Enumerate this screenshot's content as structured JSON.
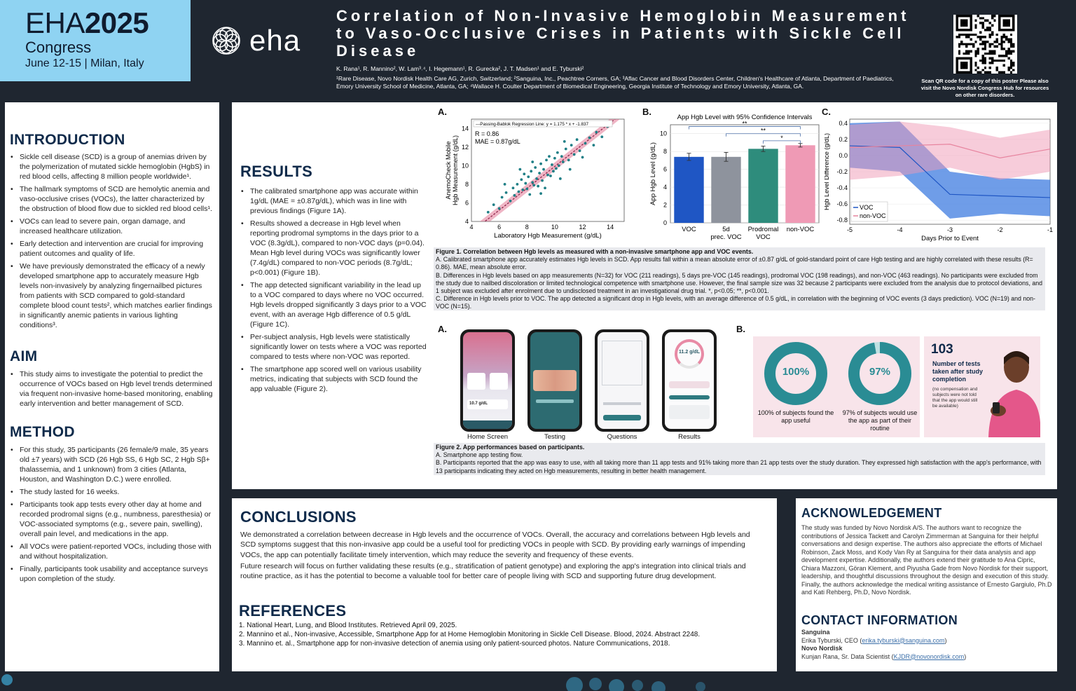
{
  "header": {
    "eha_year_light": "EHA",
    "eha_year_bold": "2025",
    "congress": "Congress",
    "dates": "June 12-15 | Milan, Italy",
    "logo_text": "eha",
    "title": "Correlation of Non-Invasive Hemoglobin Measurement to Vaso-Occlusive Crises in Patients with Sickle Cell Disease",
    "authors": "K. Rana¹, R. Mannino², W. Lam³˒⁴, I. Hegemann¹, R. Gurecka², J. T. Madsen¹ and E. Tyburski²",
    "affiliations": "¹Rare Disease, Novo Nordisk Health Care AG, Zurich, Switzerland; ²Sanguina, Inc., Peachtree Corners, GA; ³Aflac Cancer and Blood Disorders Center, Children's Healthcare of Atlanta, Department of Paediatrics, Emory University School of Medicine, Atlanta, GA; ⁴Wallace H. Coulter Department of Biomedical Engineering, Georgia Institute of Technology and Emory University, Atlanta, GA.",
    "qr_text": "Scan QR code for a copy of this poster Please also visit the Novo Nordisk Congress Hub for resources on other rare disorders."
  },
  "introduction": {
    "heading": "INTRODUCTION",
    "items": [
      "Sickle cell disease (SCD) is a group of anemias driven by the polymerization of mutated sickle hemoglobin (HgbS) in red blood cells, affecting 8 million people worldwide¹.",
      "The hallmark symptoms of SCD are hemolytic anemia and vaso-occlusive crises (VOCs), the latter characterized by the obstruction of blood flow due to sickled red blood cells¹.",
      "VOCs can lead to severe pain, organ damage, and increased healthcare utilization.",
      "Early detection and intervention are crucial for improving patient outcomes and quality of life.",
      "We have previously demonstrated the efficacy of a newly developed smartphone app to accurately measure Hgb levels non-invasively by analyzing fingernailbed pictures from patients with SCD compared to gold-standard complete blood count tests², which matches earlier findings in significantly anemic patients in various lighting conditions³."
    ]
  },
  "aim": {
    "heading": "AIM",
    "items": [
      "This study aims to investigate the potential to predict the occurrence of VOCs based on Hgb level trends determined via frequent non-invasive home-based monitoring, enabling early intervention and better management of SCD."
    ]
  },
  "method": {
    "heading": "METHOD",
    "items": [
      "For this study, 35 participants (26 female/9 male, 35 years old ±7 years) with SCD (26 Hgb SS, 6 Hgb SC, 2 Hgb Sβ+ thalassemia, and 1 unknown) from 3 cities (Atlanta, Houston, and Washington D.C.) were enrolled.",
      "The study lasted for 16 weeks.",
      "Participants took app tests every other day at home and recorded prodromal signs (e.g., numbness, paresthesia) or VOC-associated symptoms (e.g., severe pain, swelling), overall pain level, and medications in the app.",
      "All VOCs were patient-reported VOCs, including those with and without hospitalization.",
      "Finally, participants took usability and acceptance surveys upon completion of the study."
    ]
  },
  "results": {
    "heading": "RESULTS",
    "items": [
      "The calibrated smartphone app was accurate within 1g/dL (MAE = ±0.87g/dL), which was in line with previous findings (Figure 1A).",
      "Results showed a decrease in Hgb level when reporting prodromal symptoms in the days prior to a VOC (8.3g/dL), compared to non-VOC days (p=0.04). Mean Hgb level during VOCs was significantly lower (7.4g/dL) compared to non-VOC periods (8.7g/dL; p<0.001) (Figure 1B).",
      "The app detected significant variability in the lead up to a VOC compared to days where no VOC occurred. Hgb levels dropped significantly 3 days prior to a VOC event, with an average Hgb difference of 0.5 g/dL (Figure 1C).",
      "Per-subject analysis, Hgb levels were statistically significantly lower on tests where a VOC was reported compared to tests where non-VOC was reported.",
      "The smartphone app scored well on various usability metrics, indicating that subjects with SCD found the app valuable (Figure 2)."
    ]
  },
  "figure1": {
    "letter_a": "A.",
    "letter_b": "B.",
    "letter_c": "C.",
    "caption_title": "Figure 1. Correlation between Hgb levels as measured with a non-invasive smartphone app and VOC events.",
    "caption_a": "A. Calibrated smartphone app accurately estimates Hgb levels in SCD. App results fall within a mean absolute error of ±0.87 g/dL of gold-standard point of care Hgb testing and are highly correlated with these results (R= 0.86). MAE, mean absolute error.",
    "caption_b": "B. Differences in Hgb levels based on app measurements (N=32) for VOC (211 readings), 5 days pre-VOC (145 readings), prodromal VOC (198 readings), and non-VOC (463 readings). No participants were excluded from the study due to nailbed discoloration or limited technological competence with smartphone use. However, the final sample size was 32 because 2 participants were excluded from the analysis due to protocol deviations, and 1 subject was excluded after enrolment due to undisclosed treatment in an investigational drug trial. *, p<0.05; **, p<0.001.",
    "caption_c": "C. Difference in Hgb levels prior to VOC. The app detected a significant drop in Hgb levels, with an average difference of 0.5 g/dL, in correlation with the beginning of VOC events (3 days prediction). VOC (N=19) and non-VOC (N=15)."
  },
  "figure2": {
    "letter_a": "A.",
    "letter_b": "B.",
    "screens": [
      "Home Screen",
      "Testing",
      "Questions",
      "Results"
    ],
    "screen_texts": {
      "home": "10.7 g/dL",
      "results": "11.2 g/dL"
    },
    "donut1_value": "100%",
    "donut1_label": "100% of subjects found the app useful",
    "donut2_value": "97%",
    "donut2_label": "97% of subjects would use the app as part of their routine",
    "stat_number": "103",
    "stat_label": "Number of tests taken after study completion",
    "stat_note": "(no compensation and subjects were not told that the app would still be available)",
    "caption_title": "Figure 2. App performances based on participants.",
    "caption_a": "A. Smartphone app testing flow.",
    "caption_b": "B. Participants reported that the app was easy to use, with all taking more than 11 app tests and 91% taking more than 21 app tests over the study duration. They expressed high satisfaction with the app's performance, with 13 participants indicating they acted on Hgb measurements, resulting in better health management."
  },
  "conclusions": {
    "heading": "CONCLUSIONS",
    "p1": "We demonstrated a correlation between decrease in Hgb levels and the occurrence of VOCs. Overall, the accuracy and correlations between Hgb levels and SCD symptoms suggest that this non-invasive app could be a useful tool for predicting VOCs in people with SCD. By providing early warnings of impending VOCs, the app can potentially facilitate timely intervention, which may reduce the severity and frequency of these events.",
    "p2": "Future research will focus on further validating these results (e.g., stratification of patient genotype) and exploring the app's integration into clinical trials and routine practice, as it has the potential to become a valuable tool for better care of people living with SCD and supporting future drug development."
  },
  "references": {
    "heading": "REFERENCES",
    "items": [
      "1. National Heart, Lung, and Blood Institutes. Retrieved April 09, 2025.",
      "2. Mannino et al., Non-invasive, Accessible, Smartphone App for at Home Hemoglobin Monitoring in Sickle Cell Disease. Blood, 2024. Abstract 2248.",
      "3. Mannino et. al., Smartphone app for non-invasive detection of anemia using only patient-sourced photos. Nature Communications, 2018."
    ]
  },
  "acknowledgement": {
    "heading": "ACKNOWLEDGEMENT",
    "text": "The study was funded by Novo Nordisk A/S. The authors want to recognize the contributions of Jessica Tackett and Carolyn Zimmerman at Sanguina for their helpful conversations and design expertise. The authors also appreciate the efforts of Michael Robinson, Zack Moss, and Kody Van Ry at Sanguina for their data analysis and app development expertise. Additionally, the authors extend their gratitude to Ana Cipric, Chiara Mazzoni, Göran Klement, and Piyusha Gade from Novo Nordisk for their support, leadership, and thoughtful discussions throughout the design and execution of this study. Finally, the authors acknowledge the medical writing assistance of Ernesto Gargiulo, Ph.D and Kati Rehberg, Ph.D, Novo Nordisk."
  },
  "contact": {
    "heading": "CONTACT INFORMATION",
    "org1": "Sanguina",
    "person1": "Erika Tyburski, CEO (",
    "email1": "erika.tyburski@sanguina.com",
    "close1": ")",
    "org2": "Novo Nordisk",
    "person2": "Kunjan Rana, Sr. Data Scientist (",
    "email2": "KJDR@novonordisk.com",
    "close2": ")"
  },
  "colors": {
    "header_blue": "#8fd3f2",
    "background": "#1f2630",
    "voc": "#1f56c4",
    "prec_voc": "#8e939d",
    "prodromal": "#2e8c7c",
    "non_voc": "#ef9ab5",
    "teal": "#2a8c94"
  },
  "chart_data": [
    {
      "type": "scatter",
      "title": "",
      "xlabel": "Laboratory Hgb Measurement (g/dL)",
      "ylabel": "AnemoCheck Mobile Hgb Measurement (g/dL)",
      "xlim": [
        4,
        15
      ],
      "ylim": [
        4,
        15
      ],
      "xticks": [
        4,
        6,
        8,
        10,
        12,
        14
      ],
      "yticks": [
        4,
        6,
        8,
        10,
        12,
        14
      ],
      "legend": "---Passing-Bablok Regression Line: y = 1.175 * x + -1.837",
      "annotations": [
        "R = 0.86",
        "MAE = 0.87g/dL"
      ],
      "regression": {
        "slope": 1.175,
        "intercept": -1.837
      },
      "points": [
        [
          5.2,
          5.0
        ],
        [
          5.6,
          5.8
        ],
        [
          6.0,
          5.4
        ],
        [
          6.2,
          6.6
        ],
        [
          6.5,
          7.1
        ],
        [
          6.8,
          6.2
        ],
        [
          7.0,
          7.6
        ],
        [
          7.1,
          6.8
        ],
        [
          7.3,
          8.0
        ],
        [
          7.4,
          7.2
        ],
        [
          7.6,
          8.5
        ],
        [
          7.7,
          7.4
        ],
        [
          7.8,
          9.1
        ],
        [
          7.9,
          8.1
        ],
        [
          8.0,
          7.5
        ],
        [
          8.1,
          8.8
        ],
        [
          8.2,
          6.9
        ],
        [
          8.3,
          9.4
        ],
        [
          8.4,
          8.2
        ],
        [
          8.5,
          7.9
        ],
        [
          8.6,
          9.8
        ],
        [
          8.7,
          8.6
        ],
        [
          8.8,
          7.8
        ],
        [
          8.9,
          9.2
        ],
        [
          9.0,
          10.2
        ],
        [
          9.1,
          8.4
        ],
        [
          9.2,
          9.6
        ],
        [
          9.3,
          7.6
        ],
        [
          9.4,
          10.6
        ],
        [
          9.5,
          9.0
        ],
        [
          9.6,
          11.0
        ],
        [
          9.7,
          8.9
        ],
        [
          9.8,
          10.1
        ],
        [
          9.9,
          9.4
        ],
        [
          10.0,
          10.8
        ],
        [
          10.1,
          9.7
        ],
        [
          10.2,
          11.4
        ],
        [
          10.3,
          10.0
        ],
        [
          10.4,
          8.6
        ],
        [
          10.5,
          11.0
        ],
        [
          10.6,
          10.4
        ],
        [
          10.8,
          11.8
        ],
        [
          11.0,
          10.6
        ],
        [
          11.2,
          12.2
        ],
        [
          11.4,
          11.2
        ],
        [
          11.6,
          12.8
        ],
        [
          11.8,
          11.6
        ],
        [
          12.0,
          10.9
        ],
        [
          12.2,
          12.4
        ],
        [
          12.5,
          13.0
        ],
        [
          12.8,
          12.2
        ],
        [
          13.0,
          13.6
        ],
        [
          13.4,
          13.1
        ],
        [
          13.8,
          14.2
        ],
        [
          8.4,
          10.4
        ],
        [
          9.0,
          7.0
        ],
        [
          7.5,
          9.6
        ],
        [
          10.7,
          12.6
        ],
        [
          6.4,
          8.0
        ],
        [
          11.1,
          9.6
        ]
      ]
    },
    {
      "type": "bar",
      "title": "App Hgb Level with 95% Confidence Intervals",
      "xlabel": "",
      "ylabel": "App Hgb Level (g/dL)",
      "ylim": [
        0,
        11
      ],
      "yticks": [
        0,
        2,
        4,
        6,
        8,
        10
      ],
      "categories": [
        "VOC",
        "5d prec. VOC",
        "Prodromal VOC",
        "non-VOC"
      ],
      "values": [
        7.4,
        7.4,
        8.3,
        8.7
      ],
      "ci": [
        [
          7.0,
          7.8
        ],
        [
          6.9,
          7.9
        ],
        [
          8.0,
          8.6
        ],
        [
          8.5,
          8.9
        ]
      ],
      "significance": [
        {
          "pair": [
            "Prodromal VOC",
            "non-VOC"
          ],
          "label": "*"
        },
        {
          "pair": [
            "5d prec. VOC",
            "non-VOC"
          ],
          "label": "**"
        },
        {
          "pair": [
            "VOC",
            "non-VOC"
          ],
          "label": "**"
        }
      ]
    },
    {
      "type": "line",
      "title": "",
      "xlabel": "Days Prior to Event",
      "ylabel": "Hgb Level Difference (g/dL)",
      "xlim": [
        -5,
        -1
      ],
      "ylim": [
        -0.85,
        0.45
      ],
      "xticks": [
        -5,
        -4,
        -3,
        -2,
        -1
      ],
      "yticks": [
        -0.8,
        -0.6,
        -0.4,
        -0.2,
        0.0,
        0.2,
        0.4
      ],
      "legend": "bottom-left",
      "x": [
        -5,
        -4,
        -3,
        -2,
        -1
      ],
      "series": [
        {
          "name": "VOC",
          "values": [
            0.12,
            0.1,
            -0.48,
            -0.5,
            -0.52
          ],
          "lower": [
            -0.15,
            -0.2,
            -0.78,
            -0.72,
            -0.75
          ],
          "upper": [
            0.4,
            0.42,
            -0.2,
            -0.28,
            -0.3
          ]
        },
        {
          "name": "non-VOC",
          "values": [
            0.1,
            0.12,
            0.14,
            -0.03,
            0.08
          ],
          "lower": [
            -0.3,
            -0.25,
            -0.15,
            -0.3,
            -0.2
          ],
          "upper": [
            0.38,
            0.42,
            0.35,
            0.22,
            0.32
          ]
        }
      ]
    }
  ]
}
